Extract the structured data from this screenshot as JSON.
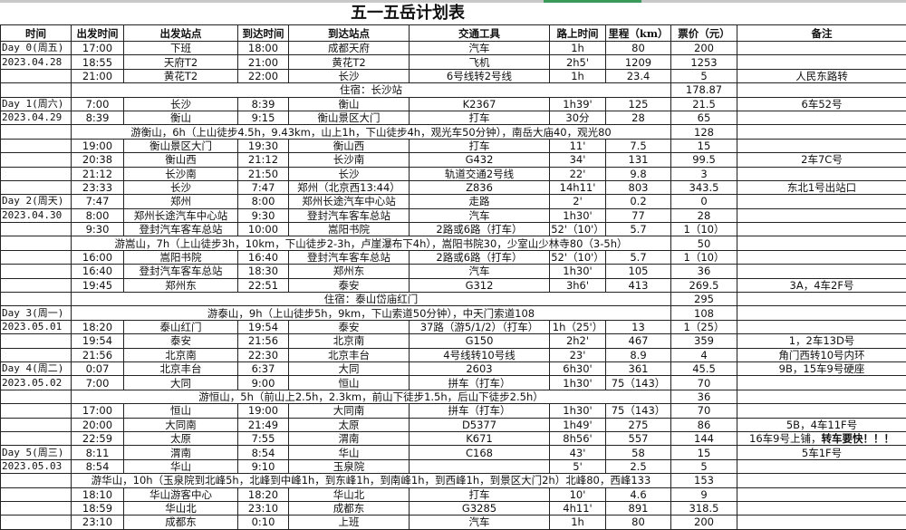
{
  "title": "五一五岳计划表",
  "headers": [
    "时间",
    "出发时间",
    "出发站点",
    "到达时间",
    "到达站点",
    "交通工具",
    "路上时间",
    "里程（km）",
    "票价（元）",
    "备注"
  ],
  "rows": [
    {
      "c": [
        "Day 0(周五)",
        "17:00",
        "下班",
        "18:00",
        "成都天府",
        "汽车",
        "1h",
        "80",
        "200",
        ""
      ]
    },
    {
      "c": [
        "2023.04.28",
        "18:55",
        "天府T2",
        "21:00",
        "黄花T2",
        "飞机",
        "2h5'",
        "1209",
        "1253",
        ""
      ]
    },
    {
      "c": [
        "",
        "21:00",
        "黄花T2",
        "22:00",
        "长沙",
        "6号线转2号线",
        "1h",
        "23.4",
        "5",
        "人民东路转"
      ]
    },
    {
      "day": "",
      "span": "住宿：长沙站",
      "price": "178.87",
      "note": ""
    },
    {
      "c": [
        "Day 1(周六)",
        "7:00",
        "长沙",
        "8:39",
        "衡山",
        "K2367",
        "1h39'",
        "125",
        "21.5",
        "6车52号"
      ]
    },
    {
      "c": [
        "2023.04.29",
        "8:39",
        "衡山",
        "9:15",
        "衡山景区大门",
        "打车",
        "30分",
        "28",
        "65",
        ""
      ]
    },
    {
      "day": "",
      "span": "游衡山，6h（上山徒步4.5h，9.43km，山上1h，下山徒步4h，观光车50分钟），南岳大庙40，观光80",
      "price": "128",
      "note": ""
    },
    {
      "c": [
        "",
        "19:00",
        "衡山景区大门",
        "19:30",
        "衡山西",
        "打车",
        "11'",
        "7.5",
        "15",
        ""
      ]
    },
    {
      "c": [
        "",
        "20:38",
        "衡山西",
        "21:12",
        "长沙南",
        "G432",
        "34'",
        "131",
        "99.5",
        "2车7C号"
      ]
    },
    {
      "c": [
        "",
        "21:12",
        "长沙南",
        "21:50",
        "长沙",
        "轨道交通2号线",
        "22'",
        "9.8",
        "3",
        ""
      ]
    },
    {
      "c": [
        "",
        "23:33",
        "长沙",
        "7:47",
        "郑州（北京西13:44）",
        "Z836",
        "14h11'",
        "803",
        "343.5",
        "东北1号出站口"
      ]
    },
    {
      "c": [
        "Day 2(周天)",
        "7:47",
        "郑州",
        "8:00",
        "郑州长途汽车中心站",
        "走路",
        "2'",
        "0.2",
        "0",
        ""
      ]
    },
    {
      "c": [
        "2023.04.30",
        "8:00",
        "郑州长途汽车中心站",
        "9:30",
        "登封汽车客车总站",
        "汽车",
        "1h30'",
        "77",
        "28",
        ""
      ]
    },
    {
      "c": [
        "",
        "9:30",
        "登封汽车客车总站",
        "10:00",
        "嵩阳书院",
        "2路或6路（打车）",
        "52'（10'）",
        "5.7",
        "1（10）",
        ""
      ]
    },
    {
      "day": "",
      "span": "游嵩山，7h（上山徒步3h，10km，下山徒步2-3h，卢崖瀑布下4h），嵩阳书院30，少室山少林寺80（3-5h）",
      "price": "50",
      "note": ""
    },
    {
      "c": [
        "",
        "16:00",
        "嵩阳书院",
        "16:40",
        "登封汽车客车总站",
        "2路或6路（打车）",
        "52'（10'）",
        "5.7",
        "1（10）",
        ""
      ]
    },
    {
      "c": [
        "",
        "16:40",
        "登封汽车客车总站",
        "18:30",
        "郑州东",
        "汽车",
        "1h30'",
        "105",
        "36",
        ""
      ]
    },
    {
      "c": [
        "",
        "19:45",
        "郑州东",
        "22:51",
        "泰安",
        "G312",
        "3h6'",
        "413",
        "269.5",
        "3A，4车2F号"
      ]
    },
    {
      "day": "",
      "span": "住宿：泰山岱庙红门",
      "price": "295",
      "note": ""
    },
    {
      "day": "Day 3(周一)",
      "span": "游泰山，9h（上山徒步5h，9km，下山索道50分钟），中天门索道108",
      "price": "108",
      "note": ""
    },
    {
      "c": [
        "2023.05.01",
        "18:20",
        "泰山红门",
        "19:54",
        "泰安",
        "37路（游5/1/2）（打车）",
        "1h（25'）",
        "13",
        "1（25）",
        ""
      ]
    },
    {
      "c": [
        "",
        "19:54",
        "泰安",
        "21:56",
        "北京南",
        "G150",
        "2h2'",
        "467",
        "359",
        "1，2车13D号"
      ]
    },
    {
      "c": [
        "",
        "21:56",
        "北京南",
        "22:30",
        "北京丰台",
        "4号线转10号线",
        "23'",
        "8.9",
        "4",
        "角门西转10号内环"
      ]
    },
    {
      "c": [
        "Day 4(周二)",
        "0:07",
        "北京丰台",
        "6:37",
        "大同",
        "2603",
        "6h30'",
        "361",
        "45.5",
        "9B，15车9号硬座"
      ]
    },
    {
      "c": [
        "2023.05.02",
        "7:00",
        "大同",
        "9:00",
        "恒山",
        "拼车（打车）",
        "1h30'",
        "75（143）",
        "70",
        ""
      ]
    },
    {
      "day": "",
      "span": "游恒山，5h（前山上2.5h，2.3km，前山下徒步1.5h，后山下徒步2.5h）",
      "price": "36",
      "note": ""
    },
    {
      "c": [
        "",
        "17:00",
        "恒山",
        "19:00",
        "大同南",
        "拼车（打车）",
        "1h30'",
        "75（143）",
        "70",
        ""
      ]
    },
    {
      "c": [
        "",
        "20:00",
        "大同南",
        "21:49",
        "太原",
        "D5377",
        "1h49'",
        "275",
        "86",
        "5B，4车11F号"
      ]
    },
    {
      "c": [
        "",
        "22:59",
        "太原",
        "7:55",
        "渭南",
        "K671",
        "8h56'",
        "557",
        "144",
        "16车9号上铺，"
      ],
      "note_bold": "转车要快！！！"
    },
    {
      "c": [
        "Day 5(周三)",
        "8:11",
        "渭南",
        "8:54",
        "华山",
        "C168",
        "43'",
        "58",
        "15",
        "5车1F号"
      ]
    },
    {
      "c": [
        "2023.05.03",
        "8:54",
        "华山",
        "9:10",
        "玉泉院",
        "",
        "5'",
        "2.5",
        "5",
        ""
      ]
    },
    {
      "day": "",
      "span": "游华山，10h（玉泉院到北峰5h，北峰到中峰1h，到东峰1h，到南峰1h，到西峰1h，到景区大门2h）北峰80，西峰133",
      "price": "153",
      "note": ""
    },
    {
      "c": [
        "",
        "18:10",
        "华山游客中心",
        "18:20",
        "华山北",
        "打车",
        "10'",
        "4.6",
        "9",
        ""
      ]
    },
    {
      "c": [
        "",
        "18:59",
        "华山北",
        "23:10",
        "成都东",
        "G3285",
        "4h11'",
        "891",
        "318.5",
        ""
      ]
    },
    {
      "c": [
        "",
        "23:10",
        "成都东",
        "0:10",
        "上班",
        "汽车",
        "1h",
        "80",
        "200",
        ""
      ]
    }
  ]
}
